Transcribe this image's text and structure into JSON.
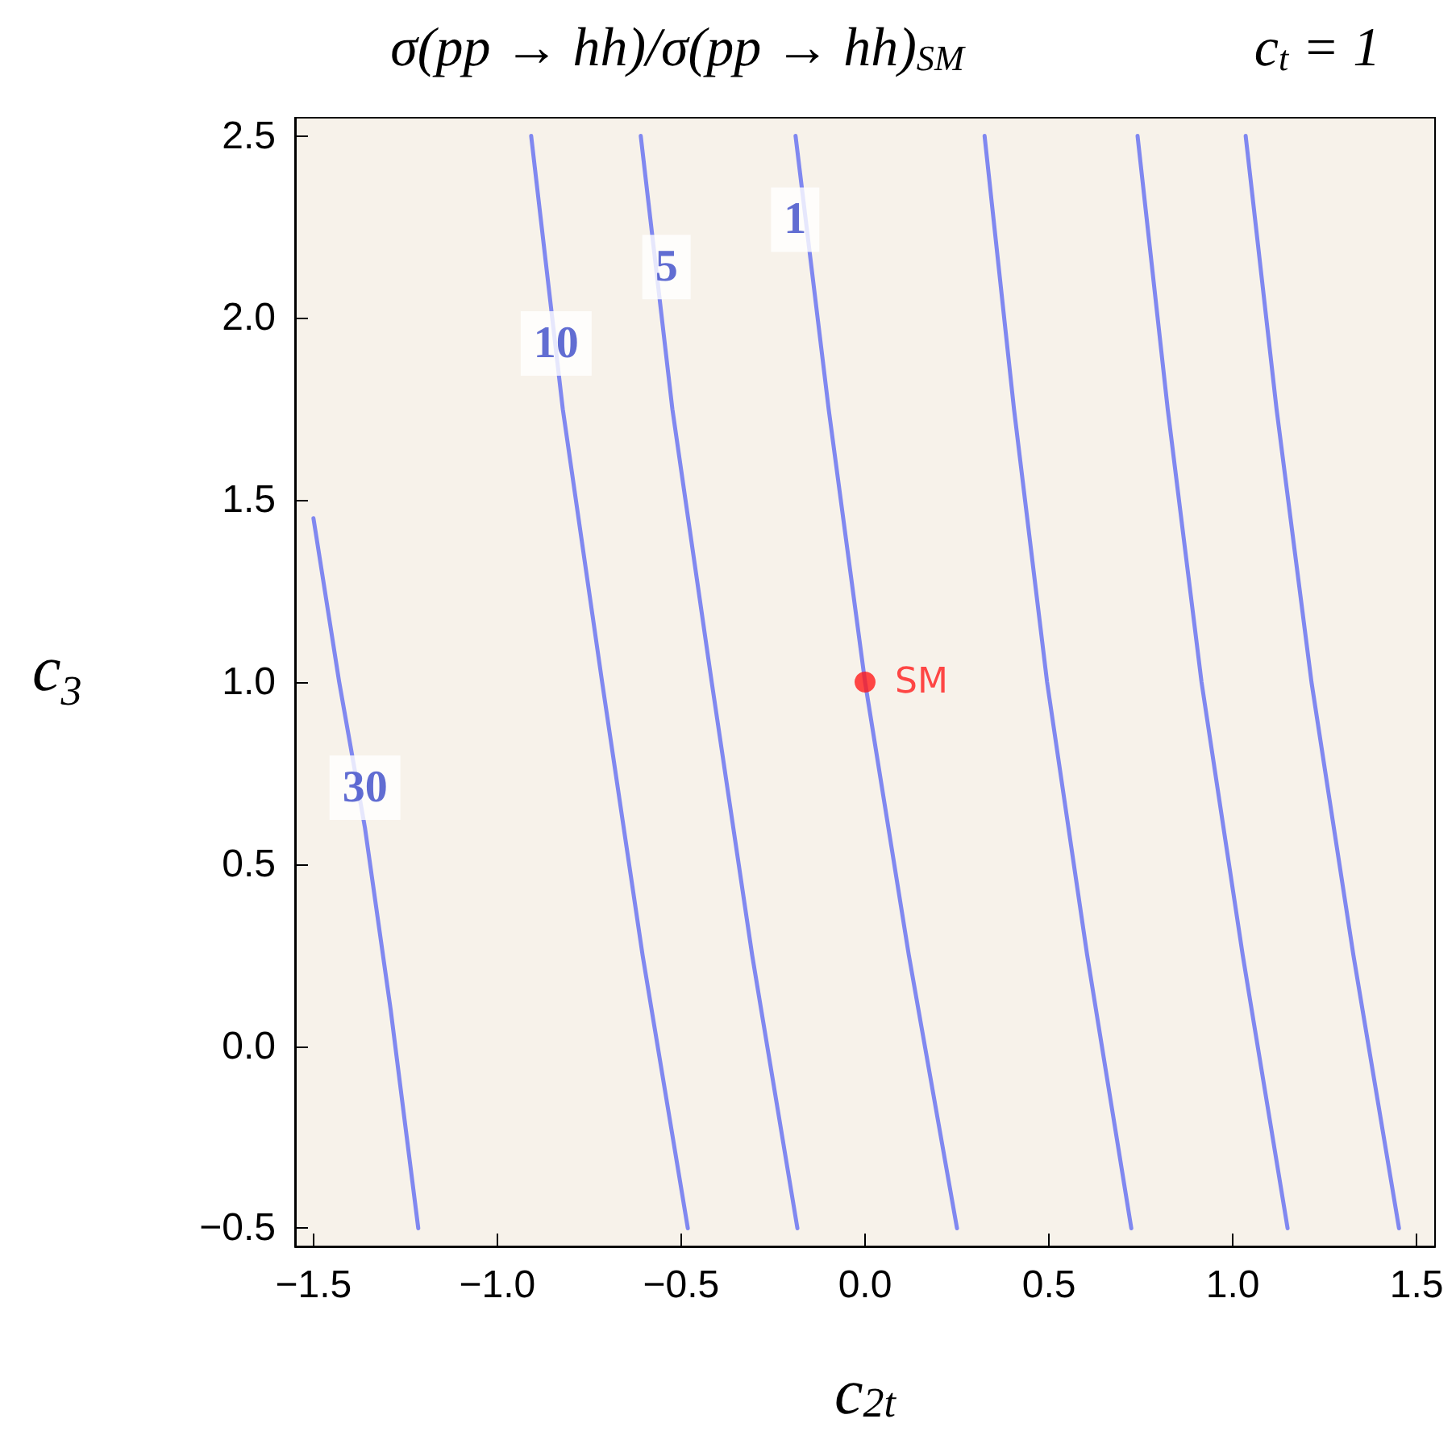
{
  "chart_data": {
    "type": "line",
    "title": "σ(pp → hh)/σ(pp → hh)$_{SM}$",
    "subtitle": "c$_{t}$ = 1",
    "xlabel": "c$_{2t}$",
    "ylabel": "c$_{3}$",
    "xlim": [
      -1.55,
      1.55
    ],
    "ylim": [
      -0.55,
      2.55
    ],
    "xticks": [
      {
        "value": -1.5,
        "label": "−1.5"
      },
      {
        "value": -1.0,
        "label": "−1.0"
      },
      {
        "value": -0.5,
        "label": "−0.5"
      },
      {
        "value": 0,
        "label": "0.0"
      },
      {
        "value": 0.5,
        "label": "0.5"
      },
      {
        "value": 1.0,
        "label": "1.0"
      },
      {
        "value": 1.5,
        "label": "1.5"
      }
    ],
    "yticks": [
      {
        "value": -0.5,
        "label": "−0.5"
      },
      {
        "value": 0,
        "label": "0.0"
      },
      {
        "value": 0.5,
        "label": "0.5"
      },
      {
        "value": 1.0,
        "label": "1.0"
      },
      {
        "value": 1.5,
        "label": "1.5"
      },
      {
        "value": 2.0,
        "label": "2.0"
      },
      {
        "value": 2.5,
        "label": "2.5"
      }
    ],
    "grid": false,
    "legend": false,
    "marker": "none",
    "line_style": "solid",
    "series": [
      {
        "color": "#8088f0",
        "x": [
          -1.5,
          -1.43,
          -1.36,
          -1.29,
          -1.215
        ],
        "values": [
          1.45,
          1.0,
          0.6,
          0.1,
          -0.5
        ]
      },
      {
        "color": "#8088f0",
        "x": [
          -0.908,
          -0.822,
          -0.715,
          -0.605,
          -0.482
        ],
        "values": [
          2.5,
          1.75,
          1.0,
          0.25,
          -0.5
        ]
      },
      {
        "color": "#8088f0",
        "x": [
          -0.61,
          -0.524,
          -0.417,
          -0.307,
          -0.184
        ],
        "values": [
          2.5,
          1.75,
          1.0,
          0.25,
          -0.5
        ]
      },
      {
        "color": "#8088f0",
        "x": [
          -0.189,
          -0.099,
          0,
          0.119,
          0.25
        ],
        "values": [
          2.5,
          1.75,
          1.0,
          0.25,
          -0.5
        ]
      },
      {
        "color": "#8088f0",
        "x": [
          0.325,
          0.405,
          0.495,
          0.604,
          0.724
        ],
        "values": [
          2.5,
          1.75,
          1.0,
          0.25,
          -0.5
        ]
      },
      {
        "color": "#8088f0",
        "x": [
          0.741,
          0.823,
          0.915,
          1.027,
          1.149
        ],
        "values": [
          2.5,
          1.75,
          1.0,
          0.25,
          -0.5
        ]
      },
      {
        "color": "#8088f0",
        "x": [
          1.035,
          1.119,
          1.214,
          1.328,
          1.452
        ],
        "values": [
          2.5,
          1.75,
          1.0,
          0.25,
          -0.5
        ]
      },
      {
        "type": "scatter",
        "name": "SM",
        "color": "#ff1a1a",
        "marker": "circle",
        "x": [
          0
        ],
        "values": [
          1.0
        ]
      }
    ],
    "annotations": [
      {
        "text": "30",
        "x": -1.36,
        "y": 0.71
      },
      {
        "text": "10",
        "x": -0.84,
        "y": 1.93
      },
      {
        "text": "5",
        "x": -0.54,
        "y": 2.14
      },
      {
        "text": "1",
        "x": -0.19,
        "y": 2.27
      }
    ]
  }
}
